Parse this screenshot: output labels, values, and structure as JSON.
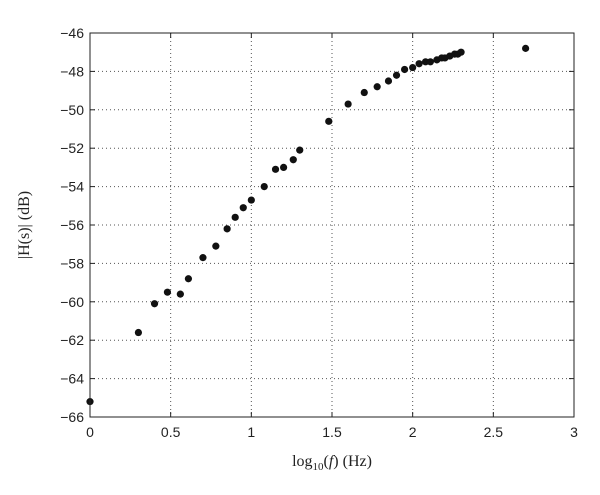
{
  "chart_data": {
    "type": "scatter",
    "title": "",
    "xlabel": {
      "prefix": "log",
      "subscript": "10",
      "suffix_pre": "(",
      "italic": "f",
      "suffix_post": ") (Hz)"
    },
    "ylabel": "|H(s)| (dB)",
    "xlim": [
      0,
      3
    ],
    "ylim": [
      -66,
      -46
    ],
    "xticks": [
      0,
      0.5,
      1,
      1.5,
      2,
      2.5,
      3
    ],
    "xtick_labels": [
      "0",
      "0.5",
      "1",
      "1.5",
      "2",
      "2.5",
      "3"
    ],
    "yticks": [
      -66,
      -64,
      -62,
      -60,
      -58,
      -56,
      -54,
      -52,
      -50,
      -48,
      -46
    ],
    "ytick_labels": [
      "−66",
      "−64",
      "−62",
      "−60",
      "−58",
      "−56",
      "−54",
      "−52",
      "−50",
      "−48",
      "−46"
    ],
    "grid": true,
    "marker_color": "#111111",
    "points": [
      [
        0.0,
        -65.2
      ],
      [
        0.3,
        -61.6
      ],
      [
        0.4,
        -60.1
      ],
      [
        0.48,
        -59.5
      ],
      [
        0.56,
        -59.6
      ],
      [
        0.61,
        -58.8
      ],
      [
        0.7,
        -57.7
      ],
      [
        0.78,
        -57.1
      ],
      [
        0.85,
        -56.2
      ],
      [
        0.9,
        -55.6
      ],
      [
        0.95,
        -55.1
      ],
      [
        1.0,
        -54.7
      ],
      [
        1.08,
        -54.0
      ],
      [
        1.15,
        -53.1
      ],
      [
        1.2,
        -53.0
      ],
      [
        1.26,
        -52.6
      ],
      [
        1.3,
        -52.1
      ],
      [
        1.48,
        -50.6
      ],
      [
        1.6,
        -49.7
      ],
      [
        1.7,
        -49.1
      ],
      [
        1.78,
        -48.8
      ],
      [
        1.85,
        -48.5
      ],
      [
        1.9,
        -48.2
      ],
      [
        1.95,
        -47.9
      ],
      [
        2.0,
        -47.8
      ],
      [
        2.04,
        -47.6
      ],
      [
        2.08,
        -47.5
      ],
      [
        2.11,
        -47.5
      ],
      [
        2.15,
        -47.4
      ],
      [
        2.18,
        -47.3
      ],
      [
        2.2,
        -47.3
      ],
      [
        2.23,
        -47.2
      ],
      [
        2.26,
        -47.1
      ],
      [
        2.28,
        -47.1
      ],
      [
        2.3,
        -47.0
      ],
      [
        2.7,
        -46.8
      ]
    ]
  }
}
